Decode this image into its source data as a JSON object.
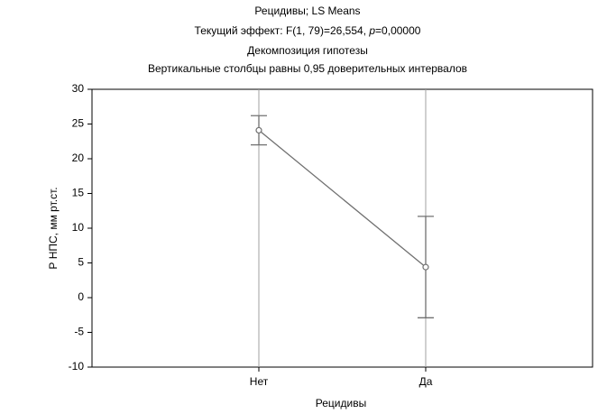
{
  "chart_data": {
    "type": "line",
    "title": "Рецидивы; LS Means",
    "subtitle_parts": [
      "Текущий эффект: F(1, 79)=26,554, ",
      "p",
      "=0,00000"
    ],
    "subtitle2": "Декомпозиция гипотезы",
    "subtitle3": "Вертикальные столбцы равны 0,95 доверительных интервалов",
    "x_label": "Рецидивы",
    "y_label": "Р НПС, мм рт.ст.",
    "categories": [
      "Нет",
      "Да"
    ],
    "series": [
      {
        "color": "#707070",
        "values": [
          24.1,
          4.4
        ],
        "errors": [
          2.1,
          7.3
        ]
      }
    ],
    "ylim": [
      -10,
      30
    ],
    "yticks": [
      -10,
      -5,
      0,
      5,
      10,
      15,
      20,
      25,
      30
    ],
    "grid_x": true
  }
}
